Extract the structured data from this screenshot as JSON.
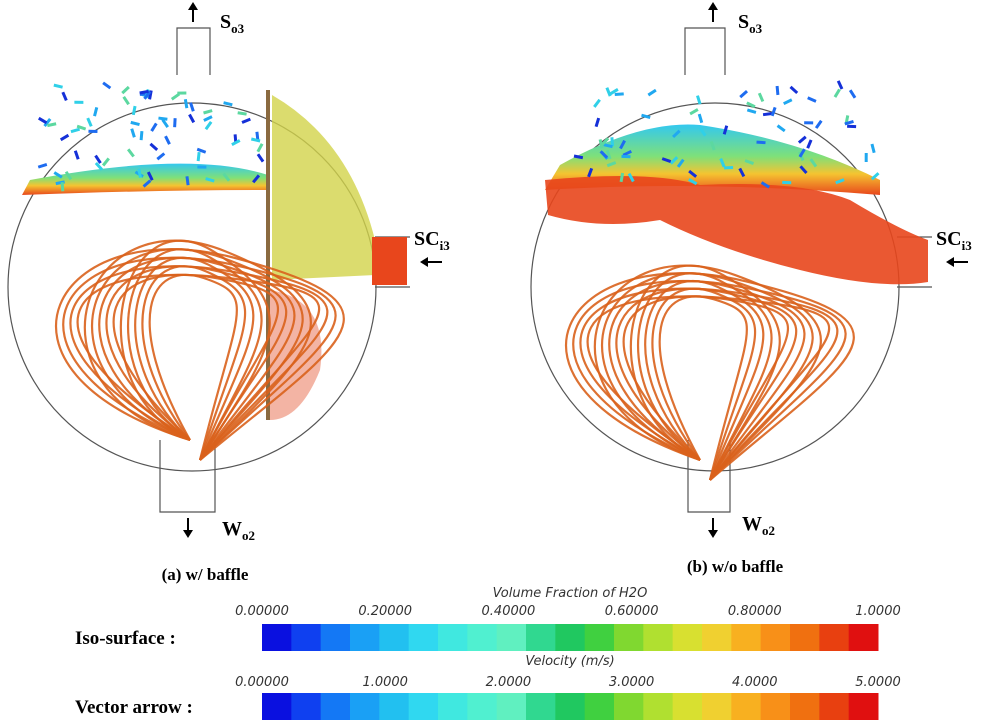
{
  "panel_a": {
    "top_label": {
      "main": "S",
      "sub": "o3"
    },
    "side_label": {
      "main": "SC",
      "sub": "i3"
    },
    "bottom_label": {
      "main": "W",
      "sub": "o2"
    },
    "caption": "(a)  w/  baffle"
  },
  "panel_b": {
    "top_label": {
      "main": "S",
      "sub": "o3"
    },
    "side_label": {
      "main": "SC",
      "sub": "i3"
    },
    "bottom_label": {
      "main": "W",
      "sub": "o2"
    },
    "caption": "(b)  w/o  baffle"
  },
  "colorbars": [
    {
      "row_label": "Iso-surface :",
      "title": "Volume Fraction of H2O",
      "ticks": [
        "0.00000",
        "0.20000",
        "0.40000",
        "0.60000",
        "0.80000",
        "1.0000"
      ]
    },
    {
      "row_label": "Vector arrow :",
      "title": "Velocity (m/s)",
      "ticks": [
        "0.00000",
        "1.0000",
        "2.0000",
        "3.0000",
        "4.0000",
        "5.0000"
      ]
    }
  ]
}
